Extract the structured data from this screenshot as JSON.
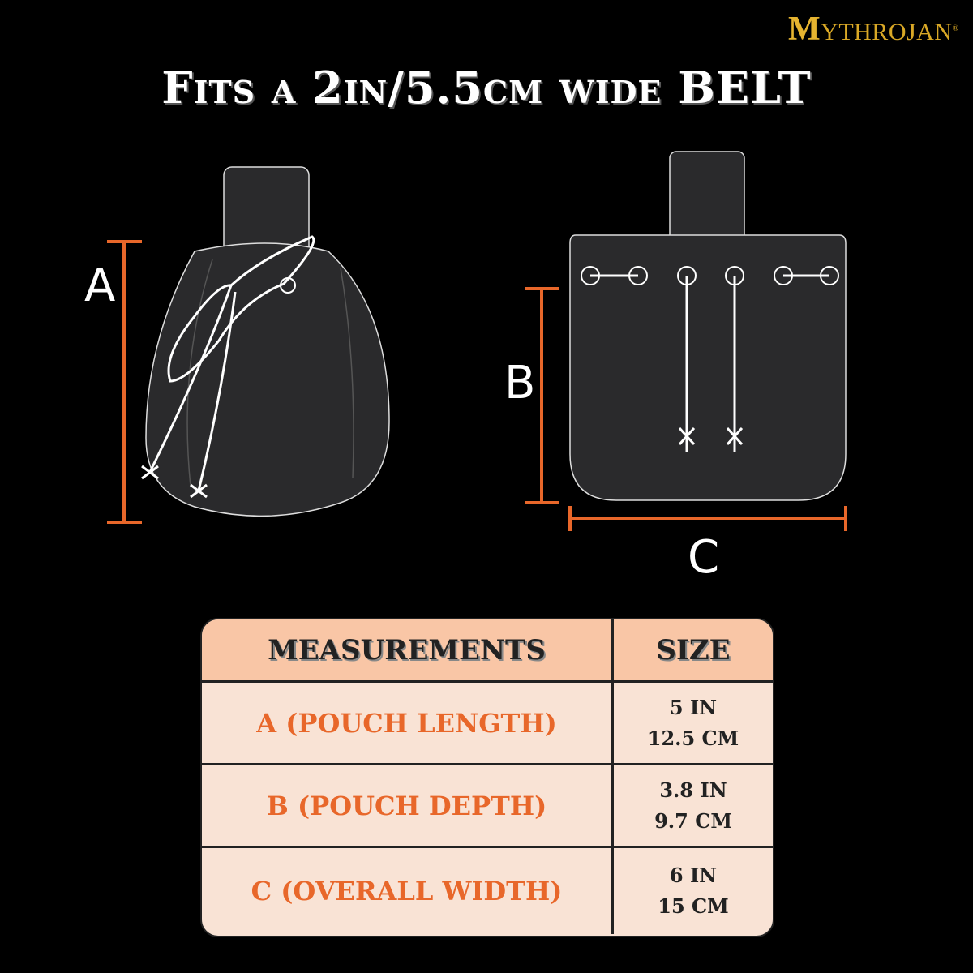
{
  "brand": {
    "logo_text": "MYTHROJAN",
    "logo_initial": "M",
    "logo_rest": "YTHROJAN",
    "registered": "®",
    "color": "#d9a826"
  },
  "title": "Fits a 2in/5.5cm wide BELT",
  "diagram": {
    "label_a": "A",
    "label_b": "B",
    "label_c": "C",
    "dimension_color": "#e8672a",
    "pouch_color": "#2a2a2c"
  },
  "table": {
    "headers": [
      "MEASUREMENTS",
      "SIZE"
    ],
    "rows": [
      {
        "name": "A (POUCH LENGTH)",
        "inch": "5 IN",
        "cm": "12.5 CM"
      },
      {
        "name": "B (POUCH DEPTH)",
        "inch": "3.8 IN",
        "cm": "9.7 CM"
      },
      {
        "name": "C (OVERALL WIDTH)",
        "inch": "6 IN",
        "cm": "15 CM"
      }
    ],
    "header_color": "#f9c6a6",
    "row_color": "#f9e3d5"
  }
}
